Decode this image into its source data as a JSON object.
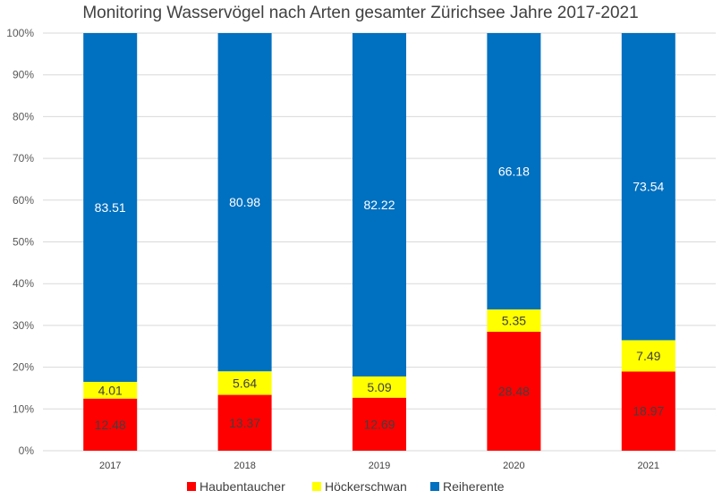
{
  "chart_data": {
    "type": "bar",
    "stacked": "percent",
    "title": "Monitoring Wasservögel nach Arten gesamter Zürichsee Jahre 2017-2021",
    "categories": [
      "2017",
      "2018",
      "2019",
      "2020",
      "2021"
    ],
    "series": [
      {
        "name": "Haubentaucher",
        "color": "#ff0000",
        "label_color": "#404040",
        "values": [
          12.48,
          13.37,
          12.69,
          28.48,
          18.97
        ]
      },
      {
        "name": "Höckerschwan",
        "color": "#ffff00",
        "label_color": "#404040",
        "values": [
          4.01,
          5.64,
          5.09,
          5.35,
          7.49
        ]
      },
      {
        "name": "Reiherente",
        "color": "#0070c0",
        "label_color": "#ffffff",
        "values": [
          83.51,
          80.98,
          82.22,
          66.18,
          73.54
        ]
      }
    ],
    "y_ticks": [
      "0%",
      "10%",
      "20%",
      "30%",
      "40%",
      "50%",
      "60%",
      "70%",
      "80%",
      "90%",
      "100%"
    ],
    "ylim": [
      0,
      100
    ],
    "grid": true,
    "legend_position": "bottom"
  }
}
